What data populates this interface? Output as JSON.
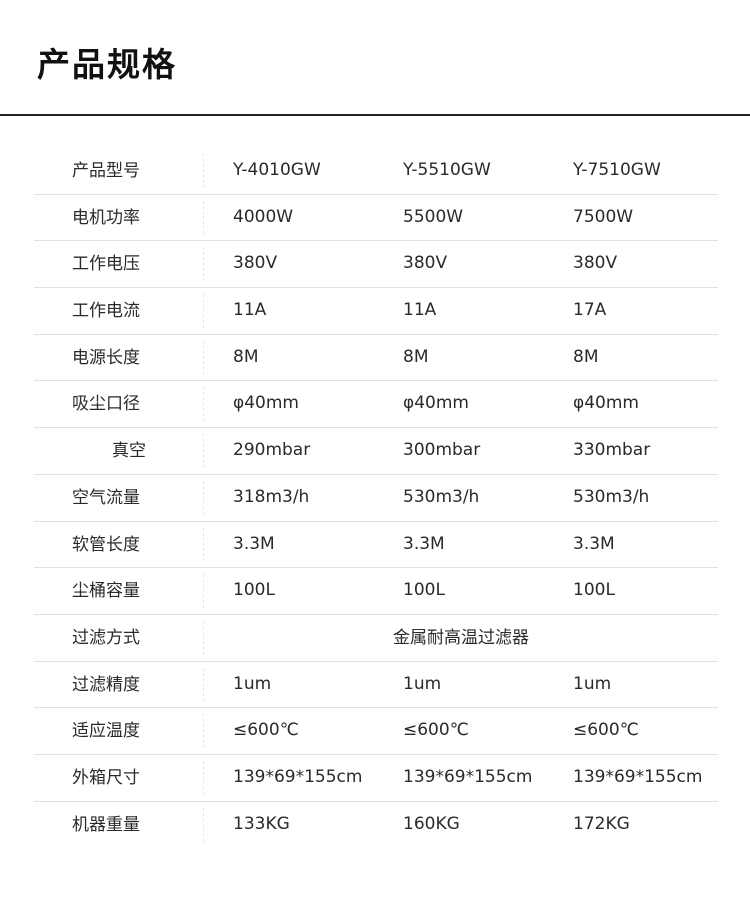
{
  "title": "产品规格",
  "rows": [
    {
      "label": "产品型号",
      "values": [
        "Y-4010GW",
        "Y-5510GW",
        "Y-7510GW"
      ]
    },
    {
      "label": "电机功率",
      "values": [
        "4000W",
        "5500W",
        "7500W"
      ]
    },
    {
      "label": "工作电压",
      "values": [
        "380V",
        "380V",
        "380V"
      ]
    },
    {
      "label": "工作电流",
      "values": [
        "11A",
        "11A",
        "17A"
      ]
    },
    {
      "label": "电源长度",
      "values": [
        "8M",
        "8M",
        "8M"
      ]
    },
    {
      "label": "吸尘口径",
      "values": [
        "φ40mm",
        "φ40mm",
        "φ40mm"
      ]
    },
    {
      "label": "真空",
      "values": [
        "290mbar",
        "300mbar",
        "330mbar"
      ]
    },
    {
      "label": "空气流量",
      "values": [
        "318m3/h",
        "530m3/h",
        "530m3/h"
      ]
    },
    {
      "label": "软管长度",
      "values": [
        "3.3M",
        "3.3M",
        "3.3M"
      ]
    },
    {
      "label": "尘桶容量",
      "values": [
        "100L",
        "100L",
        "100L"
      ]
    },
    {
      "label": "过滤方式",
      "merged": "金属耐高温过滤器"
    },
    {
      "label": "过滤精度",
      "values": [
        "1um",
        "1um",
        "1um"
      ]
    },
    {
      "label": "适应温度",
      "values": [
        "≤600℃",
        "≤600℃",
        "≤600℃"
      ]
    },
    {
      "label": "外箱尺寸",
      "values": [
        "139*69*155cm",
        "139*69*155cm",
        "139*69*155cm"
      ]
    },
    {
      "label": "机器重量",
      "values": [
        "133KG",
        "160KG",
        "172KG"
      ]
    }
  ]
}
